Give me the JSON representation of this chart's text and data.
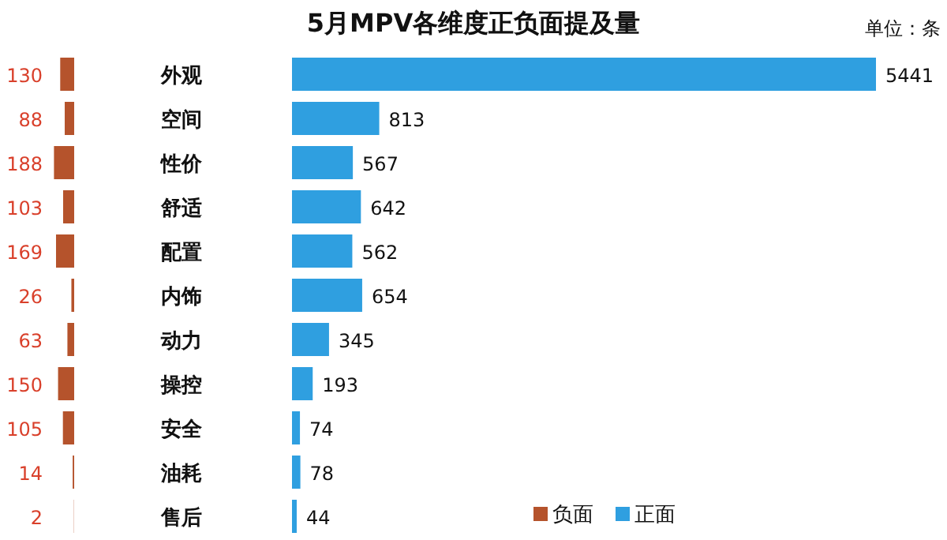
{
  "chart_data": [
    {
      "type": "bar",
      "orientation": "horizontal",
      "categories": [
        "外观",
        "空间",
        "性价",
        "舒适",
        "配置",
        "内饰",
        "动力",
        "操控",
        "安全",
        "油耗",
        "售后"
      ],
      "series": [
        {
          "name": "负面",
          "color": "#b5532c",
          "values": [
            130,
            88,
            188,
            103,
            169,
            26,
            63,
            150,
            105,
            14,
            2
          ]
        }
      ],
      "data_labels": true,
      "legend": "bottom"
    },
    {
      "type": "bar",
      "orientation": "horizontal",
      "title": "5月MPV各维度正负面提及量",
      "annotations": [
        "单位：条"
      ],
      "categories": [
        null,
        null,
        null,
        null,
        null,
        null,
        null,
        null,
        null,
        null,
        null
      ],
      "series": [
        {
          "name": "正面",
          "color": "#2f9fe0",
          "values": [
            5441,
            813,
            567,
            642,
            562,
            654,
            345,
            193,
            74,
            78,
            44
          ]
        }
      ],
      "data_labels": true,
      "legend": "bottom"
    }
  ]
}
